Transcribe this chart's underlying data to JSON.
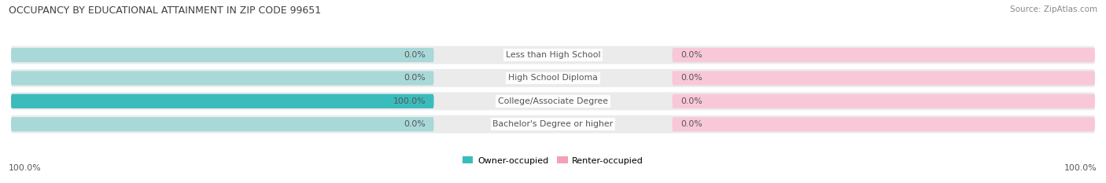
{
  "title": "OCCUPANCY BY EDUCATIONAL ATTAINMENT IN ZIP CODE 99651",
  "source": "Source: ZipAtlas.com",
  "categories": [
    "Less than High School",
    "High School Diploma",
    "College/Associate Degree",
    "Bachelor's Degree or higher"
  ],
  "owner_values": [
    0.0,
    0.0,
    100.0,
    0.0
  ],
  "renter_values": [
    0.0,
    0.0,
    0.0,
    0.0
  ],
  "owner_color": "#3bbcbc",
  "renter_color": "#f4a0b5",
  "owner_bg_color": "#a8d8d8",
  "renter_bg_color": "#f8c8d8",
  "row_bg_color": "#ebebeb",
  "label_color": "#555555",
  "title_color": "#404040",
  "source_color": "#888888",
  "left_label_100": "100.0%",
  "right_label_100": "100.0%",
  "legend_owner": "Owner-occupied",
  "legend_renter": "Renter-occupied",
  "max_value": 100.0
}
